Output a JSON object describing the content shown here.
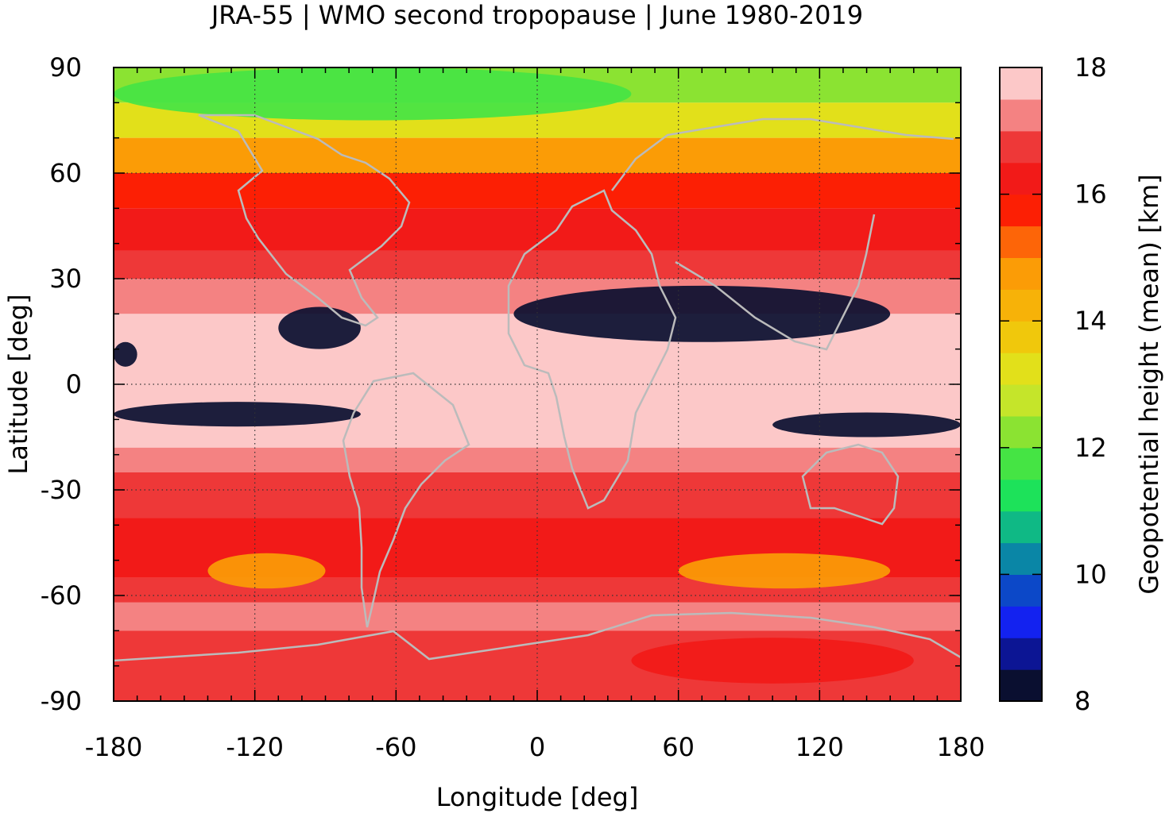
{
  "chart_data": {
    "type": "heatmap",
    "title": "JRA-55 | WMO second tropopause | June 1980-2019",
    "xlabel": "Longitude [deg]",
    "ylabel": "Latitude [deg]",
    "xlim": [
      -180,
      180
    ],
    "ylim": [
      -90,
      90
    ],
    "x_ticks": [
      -180,
      -120,
      -60,
      0,
      60,
      120,
      180
    ],
    "y_ticks": [
      90,
      60,
      30,
      0,
      -30,
      -60,
      -90
    ],
    "grid": true,
    "grid_style": "dotted",
    "coastlines": true,
    "colorbar": {
      "label": "Geopotential height (mean) [km]",
      "position": "right",
      "range": [
        8,
        18
      ],
      "ticks": [
        18,
        16,
        14,
        12,
        10,
        8
      ],
      "levels": [
        {
          "from": 8.0,
          "to": 8.5,
          "color": "#0a0f30"
        },
        {
          "from": 8.5,
          "to": 9.0,
          "color": "#0c1594"
        },
        {
          "from": 9.0,
          "to": 9.5,
          "color": "#1322f0"
        },
        {
          "from": 9.5,
          "to": 10.0,
          "color": "#0c48c8"
        },
        {
          "from": 10.0,
          "to": 10.5,
          "color": "#0a86a6"
        },
        {
          "from": 10.5,
          "to": 11.0,
          "color": "#0fb985"
        },
        {
          "from": 11.0,
          "to": 11.5,
          "color": "#1de25a"
        },
        {
          "from": 11.5,
          "to": 12.0,
          "color": "#45e444"
        },
        {
          "from": 12.0,
          "to": 12.5,
          "color": "#8be332"
        },
        {
          "from": 12.5,
          "to": 13.0,
          "color": "#c5e52a"
        },
        {
          "from": 13.0,
          "to": 13.5,
          "color": "#e2e01a"
        },
        {
          "from": 13.5,
          "to": 14.0,
          "color": "#f0c80c"
        },
        {
          "from": 14.0,
          "to": 14.5,
          "color": "#f7b208"
        },
        {
          "from": 14.5,
          "to": 15.0,
          "color": "#fb9c06"
        },
        {
          "from": 15.0,
          "to": 15.5,
          "color": "#fd6508"
        },
        {
          "from": 15.5,
          "to": 16.0,
          "color": "#fc1f04"
        },
        {
          "from": 16.0,
          "to": 16.5,
          "color": "#f21a18"
        },
        {
          "from": 16.5,
          "to": 17.0,
          "color": "#ee3838"
        },
        {
          "from": 17.0,
          "to": 17.5,
          "color": "#f48282"
        },
        {
          "from": 17.5,
          "to": 18.0,
          "color": "#fcc8c8"
        }
      ]
    },
    "zonal_bands": [
      {
        "lat": [
          80,
          90
        ],
        "value": 12.3
      },
      {
        "lat": [
          70,
          80
        ],
        "value": 13.2
      },
      {
        "lat": [
          60,
          70
        ],
        "value": 14.6
      },
      {
        "lat": [
          50,
          60
        ],
        "value": 15.8
      },
      {
        "lat": [
          38,
          50
        ],
        "value": 16.4
      },
      {
        "lat": [
          30,
          38
        ],
        "value": 16.8
      },
      {
        "lat": [
          20,
          30
        ],
        "value": 17.3
      },
      {
        "lat": [
          -18,
          20
        ],
        "value": 17.8
      },
      {
        "lat": [
          -25,
          -18
        ],
        "value": 17.3
      },
      {
        "lat": [
          -38,
          -25
        ],
        "value": 16.8
      },
      {
        "lat": [
          -55,
          -38
        ],
        "value": 16.2
      },
      {
        "lat": [
          -62,
          -55
        ],
        "value": 16.7
      },
      {
        "lat": [
          -70,
          -62
        ],
        "value": 17.4
      },
      {
        "lat": [
          -90,
          -70
        ],
        "value": 16.6
      }
    ],
    "features": [
      {
        "name": "missing-zone-asia-africa-north",
        "lon": [
          -10,
          150
        ],
        "lat": [
          12,
          28
        ],
        "value": 8.0
      },
      {
        "name": "missing-zone-americas-north",
        "lon": [
          -110,
          -75
        ],
        "lat": [
          10,
          22
        ],
        "value": 8.0
      },
      {
        "name": "missing-zone-pacific-north",
        "lon": [
          -180,
          -170
        ],
        "lat": [
          5,
          12
        ],
        "value": 8.0
      },
      {
        "name": "missing-zone-south-pacific",
        "lon": [
          -180,
          -75
        ],
        "lat": [
          -12,
          -5
        ],
        "value": 8.0
      },
      {
        "name": "missing-zone-indian-ocean",
        "lon": [
          100,
          180
        ],
        "lat": [
          -15,
          -8
        ],
        "value": 8.0
      },
      {
        "name": "arctic-low",
        "lon": [
          -180,
          40
        ],
        "lat": [
          75,
          90
        ],
        "value": 11.5
      },
      {
        "name": "south-pacific-maximum",
        "lon": [
          -140,
          -90
        ],
        "lat": [
          -58,
          -48
        ],
        "value": 14.8
      },
      {
        "name": "indian-ocean-southern-maximum",
        "lon": [
          60,
          150
        ],
        "lat": [
          -58,
          -48
        ],
        "value": 14.8
      },
      {
        "name": "antarctic-maximum",
        "lon": [
          40,
          160
        ],
        "lat": [
          -85,
          -72
        ],
        "value": 16.2
      }
    ]
  }
}
